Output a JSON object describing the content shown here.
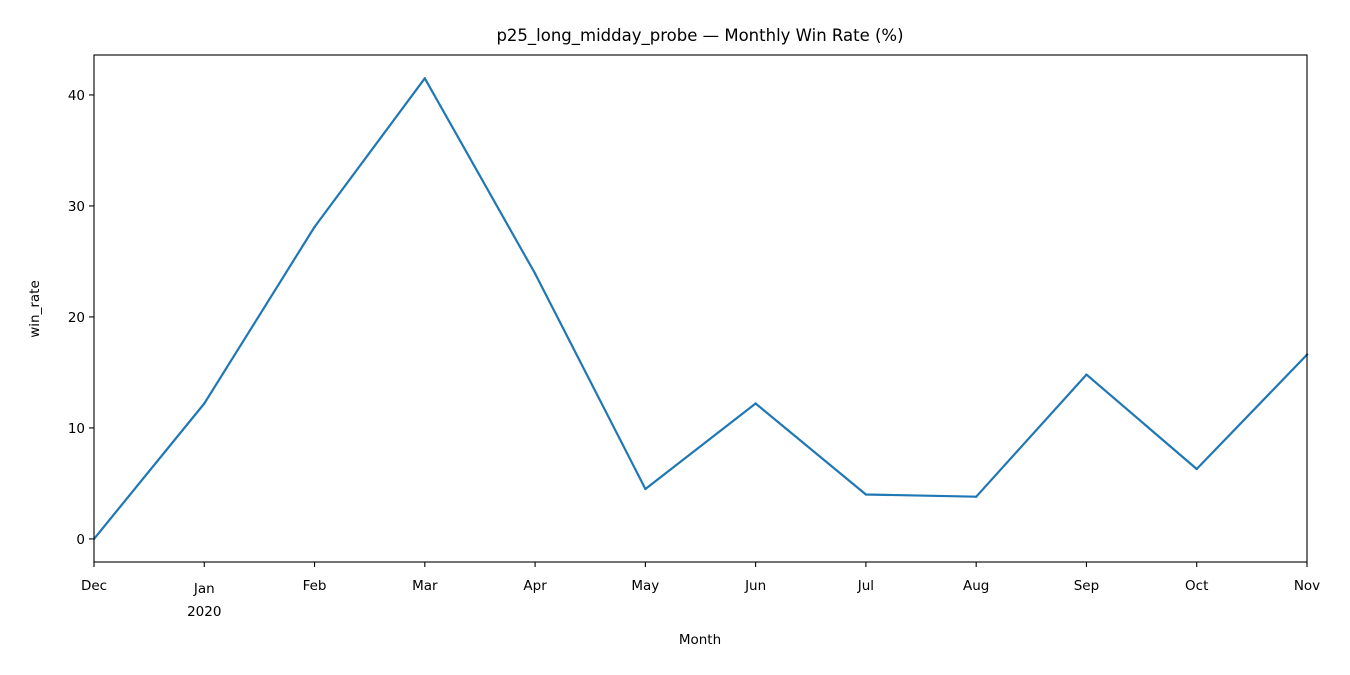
{
  "chart_data": {
    "type": "line",
    "title": "p25_long_midday_probe — Monthly Win Rate (%)",
    "xlabel": "Month",
    "ylabel": "win_rate",
    "x": [
      "2019-12",
      "2020-01",
      "2020-02",
      "2020-03",
      "2020-04",
      "2020-05",
      "2020-06",
      "2020-07",
      "2020-08",
      "2020-09",
      "2020-10",
      "2020-11"
    ],
    "x_tick_labels": [
      "Dec",
      "Jan",
      "Feb",
      "Mar",
      "Apr",
      "May",
      "Jun",
      "Jul",
      "Aug",
      "Sep",
      "Oct",
      "Nov"
    ],
    "x_tick_year_label": "2020",
    "series": [
      {
        "values": [
          0.0,
          12.2,
          28.1,
          41.5,
          23.9,
          4.5,
          12.2,
          4.0,
          3.8,
          14.8,
          6.3,
          16.6
        ],
        "color": "#1f77b4"
      }
    ],
    "yticks": [
      0,
      10,
      20,
      30,
      40
    ],
    "ylim": [
      -2.08,
      43.6
    ],
    "grid": false,
    "legend": "none"
  }
}
